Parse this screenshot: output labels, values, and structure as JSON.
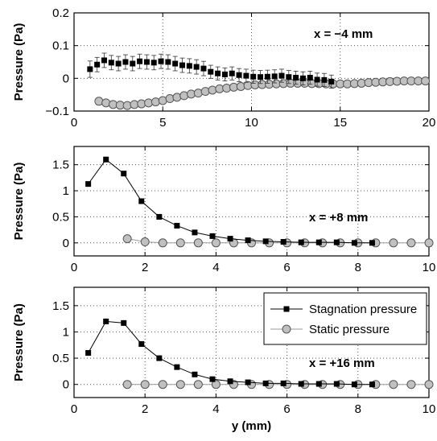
{
  "chart_data": [
    {
      "type": "line",
      "annotation": "x = −4 mm",
      "ylabel": "Pressure (Pa)",
      "xlabel": "",
      "xlim": [
        0,
        20
      ],
      "ylim": [
        -0.1,
        0.2
      ],
      "xticks": [
        0,
        5,
        10,
        15,
        20
      ],
      "yticks": [
        -0.1,
        0,
        0.1,
        0.2
      ],
      "xticklabels": [
        "0",
        "5",
        "10",
        "15",
        "20"
      ],
      "yticklabels": [
        "−0.1",
        "0",
        "0.1",
        "0.2"
      ],
      "grid": true,
      "series": [
        {
          "name": "Stagnation pressure",
          "marker": "square",
          "line": false,
          "x": [
            0.9,
            1.3,
            1.7,
            2.1,
            2.5,
            2.9,
            3.3,
            3.7,
            4.1,
            4.5,
            4.9,
            5.3,
            5.7,
            6.1,
            6.5,
            6.9,
            7.3,
            7.7,
            8.1,
            8.5,
            8.9,
            9.3,
            9.7,
            10.1,
            10.5,
            10.9,
            11.3,
            11.7,
            12.1,
            12.5,
            12.9,
            13.3,
            13.7,
            14.1,
            14.5
          ],
          "y": [
            0.028,
            0.042,
            0.055,
            0.048,
            0.045,
            0.05,
            0.045,
            0.052,
            0.05,
            0.048,
            0.052,
            0.05,
            0.045,
            0.04,
            0.038,
            0.035,
            0.03,
            0.02,
            0.015,
            0.012,
            0.015,
            0.01,
            0.008,
            0.005,
            0.004,
            0.005,
            0.006,
            0.008,
            0.004,
            0.002,
            0.0,
            0.002,
            -0.004,
            -0.005,
            -0.01
          ],
          "err": [
            0.025,
            0.022,
            0.022,
            0.022,
            0.022,
            0.022,
            0.022,
            0.022,
            0.022,
            0.022,
            0.022,
            0.022,
            0.022,
            0.022,
            0.022,
            0.022,
            0.022,
            0.02,
            0.02,
            0.02,
            0.02,
            0.02,
            0.02,
            0.02,
            0.02,
            0.02,
            0.02,
            0.02,
            0.02,
            0.02,
            0.02,
            0.02,
            0.02,
            0.02,
            0.02
          ]
        },
        {
          "name": "Static pressure",
          "marker": "circle",
          "line": true,
          "x": [
            1.4,
            1.8,
            2.2,
            2.6,
            3.0,
            3.4,
            3.8,
            4.2,
            4.6,
            5.0,
            5.4,
            5.8,
            6.2,
            6.6,
            7.0,
            7.4,
            7.8,
            8.2,
            8.6,
            9.0,
            9.4,
            9.8,
            10.2,
            10.6,
            11.0,
            11.4,
            11.8,
            12.2,
            12.6,
            13.0,
            13.4,
            13.8,
            14.2,
            14.6,
            15.0,
            15.4,
            15.8,
            16.2,
            16.6,
            17.0,
            17.4,
            17.8,
            18.2,
            18.6,
            19.0,
            19.4,
            19.8
          ],
          "y": [
            -0.07,
            -0.075,
            -0.08,
            -0.082,
            -0.083,
            -0.08,
            -0.078,
            -0.075,
            -0.072,
            -0.068,
            -0.062,
            -0.058,
            -0.053,
            -0.048,
            -0.045,
            -0.04,
            -0.036,
            -0.032,
            -0.03,
            -0.027,
            -0.025,
            -0.022,
            -0.02,
            -0.019,
            -0.018,
            -0.017,
            -0.016,
            -0.015,
            -0.015,
            -0.015,
            -0.016,
            -0.016,
            -0.017,
            -0.017,
            -0.017,
            -0.017,
            -0.016,
            -0.015,
            -0.013,
            -0.012,
            -0.011,
            -0.01,
            -0.009,
            -0.008,
            -0.008,
            -0.008,
            -0.008
          ]
        }
      ]
    },
    {
      "type": "line",
      "annotation": "x = +8 mm",
      "ylabel": "Pressure (Pa)",
      "xlabel": "",
      "xlim": [
        0,
        10
      ],
      "ylim": [
        -0.25,
        1.85
      ],
      "xticks": [
        0,
        2,
        4,
        6,
        8,
        10
      ],
      "yticks": [
        0,
        0.5,
        1,
        1.5
      ],
      "xticklabels": [
        "0",
        "2",
        "4",
        "6",
        "8",
        "10"
      ],
      "yticklabels": [
        "0",
        "0.5",
        "1",
        "1.5"
      ],
      "grid": true,
      "series": [
        {
          "name": "Stagnation pressure",
          "marker": "square",
          "line": true,
          "x": [
            0.4,
            0.9,
            1.4,
            1.9,
            2.4,
            2.9,
            3.4,
            3.9,
            4.4,
            4.9,
            5.4,
            5.9,
            6.4,
            6.9,
            7.4,
            7.9,
            8.4
          ],
          "y": [
            1.13,
            1.6,
            1.33,
            0.8,
            0.5,
            0.33,
            0.2,
            0.13,
            0.08,
            0.05,
            0.03,
            0.02,
            0.01,
            0.01,
            0.01,
            0.0,
            0.0
          ]
        },
        {
          "name": "Static pressure",
          "marker": "circle",
          "line": true,
          "x": [
            1.5,
            2.0,
            2.5,
            3.0,
            3.5,
            4.0,
            4.5,
            5.0,
            5.5,
            6.0,
            6.5,
            7.0,
            7.5,
            8.0,
            8.5,
            9.0,
            9.5,
            10.0
          ],
          "y": [
            0.08,
            0.02,
            0.0,
            0.0,
            0.0,
            0.0,
            0.0,
            0.0,
            0.0,
            0.0,
            0.0,
            0.0,
            0.0,
            0.0,
            0.0,
            0.0,
            0.0,
            0.0
          ]
        }
      ]
    },
    {
      "type": "line",
      "annotation": "x = +16 mm",
      "ylabel": "Pressure (Pa)",
      "xlabel": "y (mm)",
      "xlim": [
        0,
        10
      ],
      "ylim": [
        -0.25,
        1.85
      ],
      "xticks": [
        0,
        2,
        4,
        6,
        8,
        10
      ],
      "yticks": [
        0,
        0.5,
        1,
        1.5
      ],
      "xticklabels": [
        "0",
        "2",
        "4",
        "6",
        "8",
        "10"
      ],
      "yticklabels": [
        "0",
        "0.5",
        "1",
        "1.5"
      ],
      "grid": true,
      "legend": {
        "position": "top-right",
        "entries": [
          "Stagnation pressure",
          "Static pressure"
        ]
      },
      "series": [
        {
          "name": "Stagnation pressure",
          "marker": "square",
          "line": true,
          "x": [
            0.4,
            0.9,
            1.4,
            1.9,
            2.4,
            2.9,
            3.4,
            3.9,
            4.4,
            4.9,
            5.4,
            5.9,
            6.4,
            6.9,
            7.4,
            7.9,
            8.4
          ],
          "y": [
            0.6,
            1.2,
            1.17,
            0.77,
            0.5,
            0.33,
            0.19,
            0.1,
            0.06,
            0.04,
            0.02,
            0.02,
            0.01,
            0.01,
            0.01,
            0.0,
            0.0
          ]
        },
        {
          "name": "Static pressure",
          "marker": "circle",
          "line": true,
          "x": [
            1.5,
            2.0,
            2.5,
            3.0,
            3.5,
            4.0,
            4.5,
            5.0,
            5.5,
            6.0,
            6.5,
            7.0,
            7.5,
            8.0,
            8.5,
            9.0,
            9.5,
            10.0
          ],
          "y": [
            0.0,
            0.0,
            0.0,
            0.0,
            0.0,
            0.0,
            0.0,
            0.0,
            0.0,
            0.0,
            0.0,
            0.0,
            0.0,
            0.0,
            0.0,
            0.0,
            0.0,
            0.0
          ]
        }
      ]
    }
  ],
  "colors": {
    "stagnation_marker": "#000000",
    "static_marker_fill": "#c0c0c0",
    "static_marker_stroke": "#555555",
    "line": "#000000",
    "static_line": "#9a9a9a"
  }
}
